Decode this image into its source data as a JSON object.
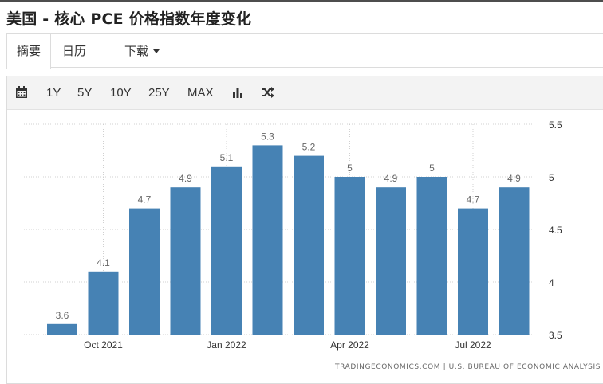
{
  "page": {
    "title": "美国 - 核心 PCE 价格指数年度变化"
  },
  "tabs": [
    {
      "label": "摘要",
      "active": true
    },
    {
      "label": "日历",
      "active": false
    },
    {
      "label": "下载",
      "active": false
    }
  ],
  "toolbar": {
    "ranges": [
      "1Y",
      "5Y",
      "10Y",
      "25Y",
      "MAX"
    ],
    "icons": [
      "calendar-icon",
      "bar-chart-icon",
      "shuffle-icon"
    ]
  },
  "source": {
    "text": "TRADINGECONOMICS.COM  |  U.S. BUREAU OF ECONOMIC ANALYSIS"
  },
  "colors": {
    "bar": "#4682b4",
    "grid": "#d0d0d0",
    "axis_text": "#333333",
    "data_label": "#666666"
  },
  "chart_data": {
    "type": "bar",
    "categories": [
      "Sep 2021",
      "Oct 2021",
      "Nov 2021",
      "Dec 2021",
      "Jan 2022",
      "Feb 2022",
      "Mar 2022",
      "Apr 2022",
      "May 2022",
      "Jun 2022",
      "Jul 2022",
      "Aug 2022"
    ],
    "values": [
      3.6,
      4.1,
      4.7,
      4.9,
      5.1,
      5.3,
      5.2,
      5.0,
      4.9,
      5.0,
      4.7,
      4.9
    ],
    "data_labels": [
      "3.6",
      "4.1",
      "4.7",
      "4.9",
      "5.1",
      "5.3",
      "5.2",
      "5",
      "4.9",
      "5",
      "4.7",
      "4.9"
    ],
    "x_tick_labels": [
      {
        "category": "Oct 2021",
        "label": "Oct 2021"
      },
      {
        "category": "Jan 2022",
        "label": "Jan 2022"
      },
      {
        "category": "Apr 2022",
        "label": "Apr 2022"
      },
      {
        "category": "Jul 2022",
        "label": "Jul 2022"
      }
    ],
    "y_ticks": [
      "3.5",
      "4",
      "4.5",
      "5",
      "5.5"
    ],
    "ylim": [
      3.5,
      5.5
    ],
    "title": "",
    "xlabel": "",
    "ylabel": "",
    "grid": true,
    "y_axis_side": "right",
    "legend": "none"
  }
}
